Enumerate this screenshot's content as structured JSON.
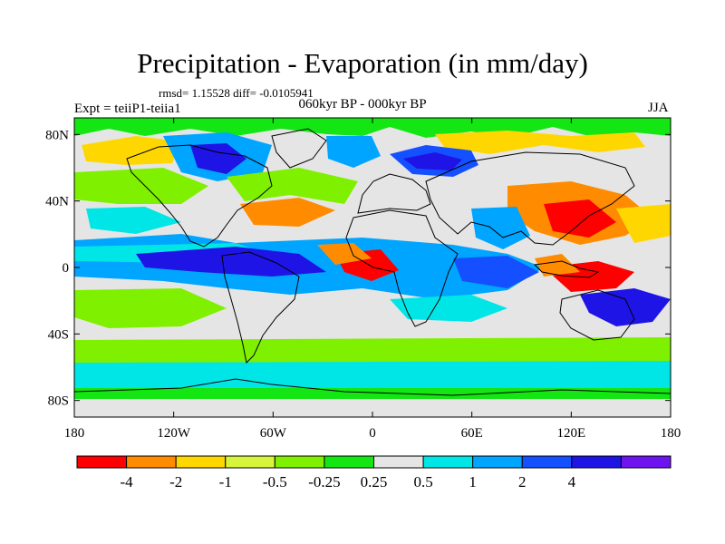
{
  "title": "Precipitation - Evaporation (in mm/day)",
  "stats": "rmsd= 1.15528 diff= -0.0105941",
  "experiment": "Expt = teiiP1-teiia1",
  "period": "060kyr BP - 000kyr BP",
  "season": "JJA",
  "map": {
    "projection": "cylindrical-equidistant",
    "lon_range": [
      -180,
      180
    ],
    "lat_range": [
      -90,
      90
    ],
    "background_color": "#e5e5e5",
    "coastline_color": "#000000",
    "lat_ticks": [
      {
        "value": 80,
        "label": "80N"
      },
      {
        "value": 40,
        "label": "40N"
      },
      {
        "value": 0,
        "label": "0"
      },
      {
        "value": -40,
        "label": "40S"
      },
      {
        "value": -80,
        "label": "80S"
      }
    ],
    "lon_ticks": [
      {
        "value": -180,
        "label": "180"
      },
      {
        "value": -120,
        "label": "120W"
      },
      {
        "value": -60,
        "label": "60W"
      },
      {
        "value": 0,
        "label": "0"
      },
      {
        "value": 60,
        "label": "60E"
      },
      {
        "value": 120,
        "label": "120E"
      },
      {
        "value": 180,
        "label": "180"
      }
    ]
  },
  "colorbar": {
    "colors": [
      "#ff0000",
      "#ff8c00",
      "#ffd700",
      "#d7f53c",
      "#7ff000",
      "#14e614",
      "#e5e5e5",
      "#00e6e6",
      "#00a5ff",
      "#1450ff",
      "#1e14e6",
      "#6e14f0"
    ],
    "labels": [
      "-4",
      "-2",
      "-1",
      "-0.5",
      "-0.25",
      "0.25",
      "0.5",
      "1",
      "2",
      "4"
    ]
  }
}
